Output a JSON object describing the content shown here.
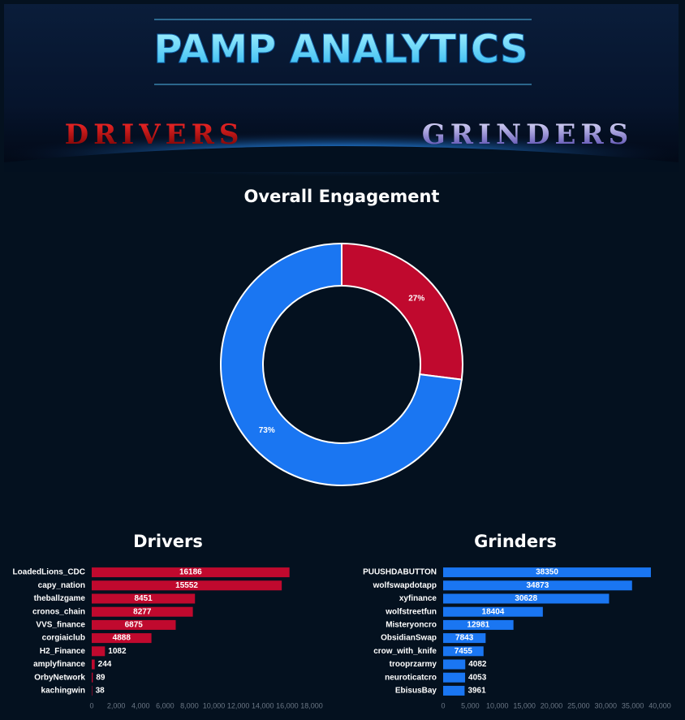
{
  "banner": {
    "title": "PAMP ANALYTICS",
    "left_label": "DRIVERS",
    "right_label": "GRINDERS"
  },
  "chart_data": [
    {
      "type": "pie",
      "donut": true,
      "title": "Overall Engagement",
      "values": [
        27,
        73
      ],
      "value_labels": [
        "27%",
        "73%"
      ],
      "colors": [
        "#c0092e",
        "#1a76f2"
      ]
    },
    {
      "type": "bar",
      "orientation": "horizontal",
      "title": "Drivers",
      "color": "#c0092e",
      "categories": [
        "LoadedLions_CDC",
        "capy_nation",
        "theballzgame",
        "cronos_chain",
        "VVS_finance",
        "corgiaiclub",
        "H2_Finance",
        "amplyfinance",
        "OrbyNetwork",
        "kachingwin"
      ],
      "values": [
        16186,
        15552,
        8451,
        8277,
        6875,
        4888,
        1082,
        244,
        89,
        38
      ],
      "xlim": [
        0,
        18000
      ],
      "xticks": [
        0,
        {
          "value": 2000,
          "label": "2,000"
        },
        {
          "value": 4000,
          "label": "4,000"
        },
        {
          "value": 6000,
          "label": "6,000"
        },
        {
          "value": 8000,
          "label": "8,000"
        },
        {
          "value": 10000,
          "label": "10,000"
        },
        {
          "value": 12000,
          "label": "12,000"
        },
        {
          "value": 14000,
          "label": "14,000"
        },
        {
          "value": 16000,
          "label": "16,000"
        },
        {
          "value": 18000,
          "label": "18,000"
        }
      ]
    },
    {
      "type": "bar",
      "orientation": "horizontal",
      "title": "Grinders",
      "color": "#1a76f2",
      "categories": [
        "PUUSHDABUTTON",
        "wolfswapdotapp",
        "xyfinance",
        "wolfstreetfun",
        "Misteryoncro",
        "ObsidianSwap",
        "crow_with_knife",
        "trooprzarmy",
        "neuroticatcro",
        "EbisusBay"
      ],
      "values": [
        38350,
        34873,
        30628,
        18404,
        12981,
        7843,
        7455,
        4082,
        4053,
        3961
      ],
      "xlim": [
        0,
        40000
      ],
      "xticks": [
        0,
        {
          "value": 5000,
          "label": "5,000"
        },
        {
          "value": 10000,
          "label": "10,000"
        },
        {
          "value": 15000,
          "label": "15,000"
        },
        {
          "value": 20000,
          "label": "20,000"
        },
        {
          "value": 25000,
          "label": "25,000"
        },
        {
          "value": 30000,
          "label": "30,000"
        },
        {
          "value": 35000,
          "label": "35,000"
        },
        {
          "value": 40000,
          "label": "40,000"
        }
      ]
    }
  ]
}
